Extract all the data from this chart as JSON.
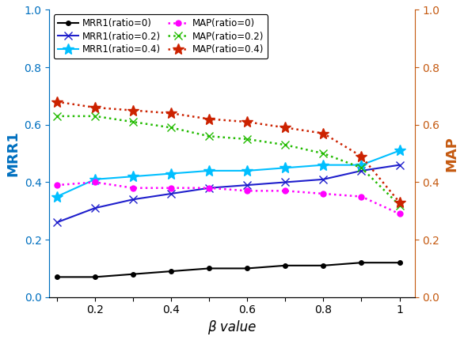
{
  "beta": [
    0.1,
    0.2,
    0.3,
    0.4,
    0.5,
    0.6,
    0.7,
    0.8,
    0.9,
    1.0
  ],
  "MRR1_ratio0": [
    0.07,
    0.07,
    0.08,
    0.09,
    0.1,
    0.1,
    0.11,
    0.11,
    0.12,
    0.12
  ],
  "MRR1_ratio02": [
    0.26,
    0.31,
    0.34,
    0.36,
    0.38,
    0.39,
    0.4,
    0.41,
    0.44,
    0.46
  ],
  "MRR1_ratio04": [
    0.35,
    0.41,
    0.42,
    0.43,
    0.44,
    0.44,
    0.45,
    0.46,
    0.46,
    0.51
  ],
  "MAP_ratio0": [
    0.39,
    0.4,
    0.38,
    0.38,
    0.38,
    0.37,
    0.37,
    0.36,
    0.35,
    0.29
  ],
  "MAP_ratio02": [
    0.63,
    0.63,
    0.61,
    0.59,
    0.56,
    0.55,
    0.53,
    0.5,
    0.45,
    0.32
  ],
  "MAP_ratio04": [
    0.68,
    0.66,
    0.65,
    0.64,
    0.62,
    0.61,
    0.59,
    0.57,
    0.49,
    0.33
  ],
  "left_ylim": [
    0,
    1
  ],
  "right_ylim": [
    0,
    1
  ],
  "xlabel": "β value",
  "ylabel_left": "MRR1",
  "ylabel_right": "MAP",
  "left_color": "#0070C0",
  "right_color": "#C55A11",
  "legend_labels_left": [
    "MRR1(ratio=0)",
    "MRR1(ratio=0.2)",
    "MRR1(ratio=0.4)"
  ],
  "legend_labels_right": [
    "MAP(ratio=0)",
    "MAP(ratio=0.2)",
    "MAP(ratio=0.4)"
  ],
  "line_colors_left": [
    "#000000",
    "#1F1FCC",
    "#00BFFF"
  ],
  "line_colors_right": [
    "#FF00FF",
    "#22BB00",
    "#CC2200"
  ],
  "xticks": [
    0.1,
    0.2,
    0.3,
    0.4,
    0.5,
    0.6,
    0.7,
    0.8,
    0.9,
    1.0
  ],
  "xtick_labels": [
    "",
    "0.2",
    "",
    "0.4",
    "",
    "0.6",
    "",
    "0.8",
    "",
    "1"
  ],
  "yticks_left": [
    0,
    0.2,
    0.4,
    0.6,
    0.8,
    1.0
  ],
  "yticks_right": [
    0,
    0.2,
    0.4,
    0.6,
    0.8,
    1.0
  ]
}
